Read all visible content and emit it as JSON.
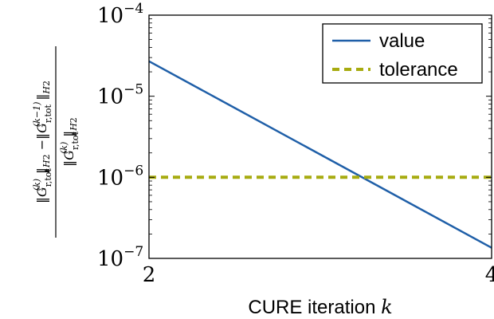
{
  "chart_data": {
    "type": "line",
    "xlabel_text": "CURE iteration",
    "xlabel_var": "k",
    "ylabel": "‖G_{r,tot}^{(k)}‖_{H2} − ‖G_{r,tot}^{(k−1)}‖_{H2} / ‖G_{r,tot}^{(k)}‖_{H2}",
    "xlim": [
      2,
      4
    ],
    "ylim": [
      1e-07,
      0.0001
    ],
    "yscale": "log",
    "grid": false,
    "legend_position": "top-right",
    "x_ticks": [
      "2",
      "4"
    ],
    "y_ticks": [
      {
        "value": 0.0001,
        "base": "10",
        "exp": "−4"
      },
      {
        "value": 1e-05,
        "base": "10",
        "exp": "−5"
      },
      {
        "value": 1e-06,
        "base": "10",
        "exp": "−6"
      },
      {
        "value": 1e-07,
        "base": "10",
        "exp": "−7"
      }
    ],
    "series": [
      {
        "name": "value",
        "color": "#1f5fa8",
        "dash": "solid",
        "x": [
          2,
          4
        ],
        "y": [
          2.7e-05,
          1.35e-07
        ]
      },
      {
        "name": "tolerance",
        "color": "#a7ab10",
        "dash": "dashed",
        "x": [
          2,
          4
        ],
        "y": [
          1e-06,
          1e-06
        ]
      }
    ]
  }
}
